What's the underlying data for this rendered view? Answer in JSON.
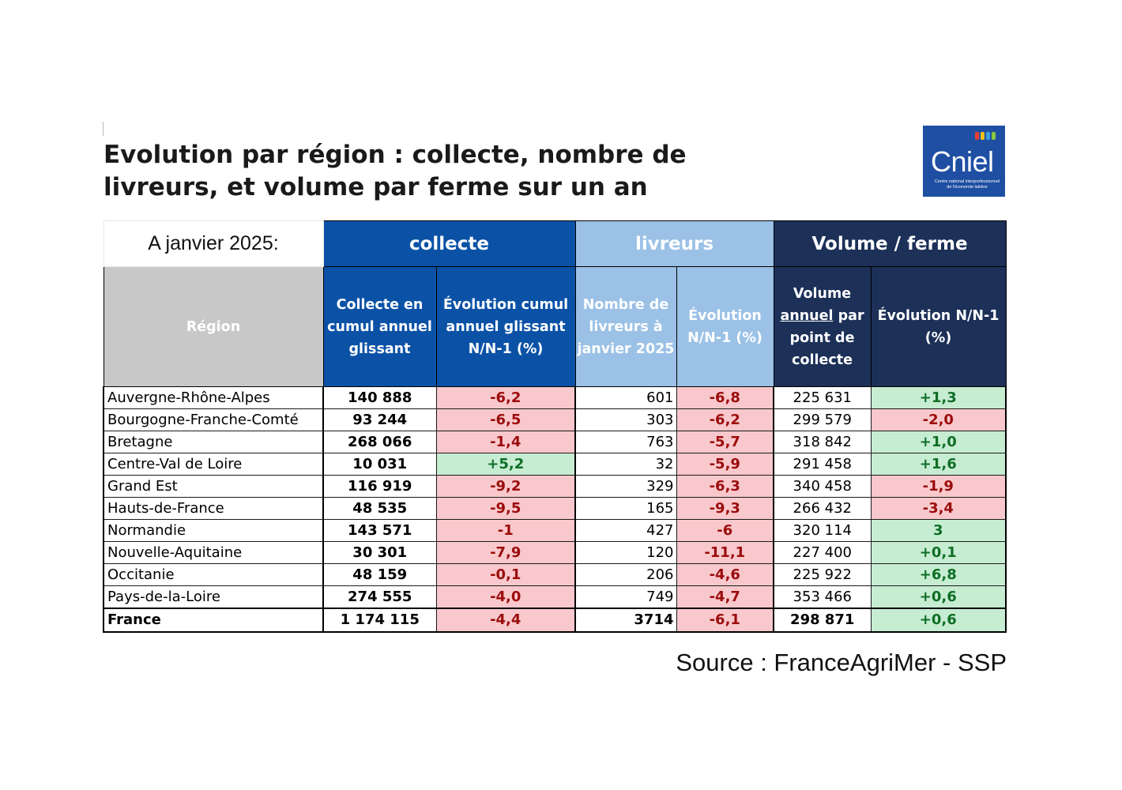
{
  "title": {
    "line1": "Evolution par région : collecte, nombre de",
    "line2": "livreurs, et volume par ferme sur un an"
  },
  "logo": {
    "word": "Cniel",
    "subtitle": "Centre national interprofessionnel de l'économie laitière",
    "mark_colors": [
      "#e8412c",
      "#f6c11a",
      "#3aa0db",
      "#8cc63f"
    ]
  },
  "table": {
    "date_label": "A janvier 2025:",
    "groups": {
      "collecte": "collecte",
      "livreurs": "livreurs",
      "volume": "Volume / ferme"
    },
    "headers": {
      "region": "Région",
      "collecte": "Collecte en cumul annuel glissant",
      "evo_collecte": "Évolution cumul annuel glissant N/N-1 (%)",
      "livreurs": "Nombre de livreurs à janvier 2025",
      "evo_livreurs": "Évolution N/N-1 (%)",
      "volume_pre": "Volume",
      "volume_u": "annuel",
      "volume_post": "par point de collecte",
      "evo_volume": "Évolution N/N-1 (%)"
    },
    "colors": {
      "collecte": "#0b52a6",
      "livreurs": "#9bc1e6",
      "volume": "#1c3058",
      "negative_bg": "#f9c8cc",
      "positive_bg": "#c6ecd2"
    },
    "rows": [
      {
        "region": "Auvergne-Rhône-Alpes",
        "collecte": "140 888",
        "evo_collecte": "-6,2",
        "livreurs": "601",
        "evo_livreurs": "-6,8",
        "volume": "225 631",
        "evo_volume": "+1,3"
      },
      {
        "region": "Bourgogne-Franche-Comté",
        "collecte": "93 244",
        "evo_collecte": "-6,5",
        "livreurs": "303",
        "evo_livreurs": "-6,2",
        "volume": "299 579",
        "evo_volume": "-2,0"
      },
      {
        "region": "Bretagne",
        "collecte": "268 066",
        "evo_collecte": "-1,4",
        "livreurs": "763",
        "evo_livreurs": "-5,7",
        "volume": "318 842",
        "evo_volume": "+1,0"
      },
      {
        "region": "Centre-Val de Loire",
        "collecte": "10 031",
        "evo_collecte": "+5,2",
        "livreurs": "32",
        "evo_livreurs": "-5,9",
        "volume": "291 458",
        "evo_volume": "+1,6"
      },
      {
        "region": "Grand Est",
        "collecte": "116 919",
        "evo_collecte": "-9,2",
        "livreurs": "329",
        "evo_livreurs": "-6,3",
        "volume": "340 458",
        "evo_volume": "-1,9"
      },
      {
        "region": "Hauts-de-France",
        "collecte": "48 535",
        "evo_collecte": "-9,5",
        "livreurs": "165",
        "evo_livreurs": "-9,3",
        "volume": "266 432",
        "evo_volume": "-3,4"
      },
      {
        "region": "Normandie",
        "collecte": "143 571",
        "evo_collecte": "-1",
        "livreurs": "427",
        "evo_livreurs": "-6",
        "volume": "320 114",
        "evo_volume": "3"
      },
      {
        "region": "Nouvelle-Aquitaine",
        "collecte": "30 301",
        "evo_collecte": "-7,9",
        "livreurs": "120",
        "evo_livreurs": "-11,1",
        "volume": "227 400",
        "evo_volume": "+0,1"
      },
      {
        "region": "Occitanie",
        "collecte": "48 159",
        "evo_collecte": "-0,1",
        "livreurs": "206",
        "evo_livreurs": "-4,6",
        "volume": "225 922",
        "evo_volume": "+6,8"
      },
      {
        "region": "Pays-de-la-Loire",
        "collecte": "274 555",
        "evo_collecte": "-4,0",
        "livreurs": "749",
        "evo_livreurs": "-4,7",
        "volume": "353 466",
        "evo_volume": "+0,6"
      }
    ],
    "total": {
      "region": "France",
      "collecte": "1 174 115",
      "evo_collecte": "-4,4",
      "livreurs": "3714",
      "evo_livreurs": "-6,1",
      "volume": "298 871",
      "evo_volume": "+0,6"
    }
  },
  "source": "Source : FranceAgriMer - SSP"
}
